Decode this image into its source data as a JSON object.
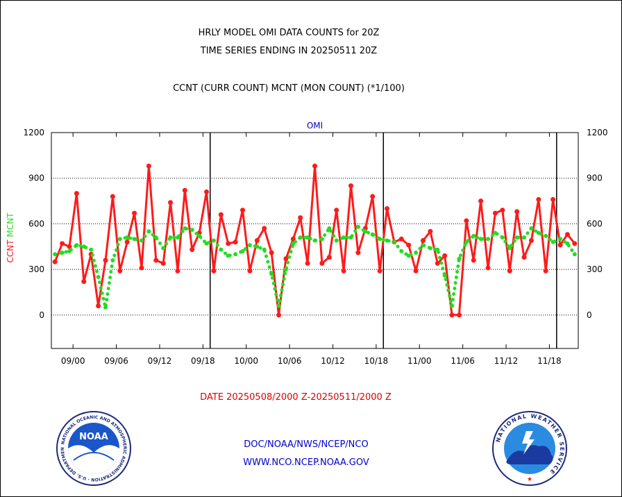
{
  "titles": {
    "line1": "HRLY MODEL OMI DATA COUNTS for 20Z",
    "line2": "TIME SERIES ENDING IN 20250511 20Z",
    "line3": "CCNT (CURR COUNT) MCNT (MON COUNT) (*1/100)"
  },
  "date_range": "DATE 20250508/2000 Z-20250511/2000 Z",
  "footer": {
    "org": "DOC/NOAA/NWS/NCEP/NCO",
    "url": "WWW.NCO.NCEP.NOAA.GOV"
  },
  "logos": {
    "left": {
      "name": "noaa-logo",
      "ring_text": "NATIONAL OCEANIC AND ATMOSPHERIC ADMINISTRATION · U.S. DEPARTMENT OF COMMERCE",
      "center_text": "NOAA"
    },
    "right": {
      "name": "nws-logo",
      "ring_text": "NATIONAL WEATHER SERVICE"
    }
  },
  "colors": {
    "ccnt": "#ff1a1a",
    "mcnt": "#22dd22",
    "axis": "#000000",
    "header": "#0000cc",
    "date": "#dd0000"
  },
  "chart_data": {
    "type": "line",
    "title": "OMI",
    "ylabel_left": [
      {
        "text": "CCNT",
        "color": "#ff1a1a"
      },
      {
        "text": "MCNT",
        "color": "#22dd22"
      }
    ],
    "ylim": [
      -220,
      1200
    ],
    "yticks": [
      0,
      300,
      600,
      900,
      1200
    ],
    "ytick_labels": [
      "0",
      "300",
      "600",
      "900",
      "1200"
    ],
    "xlim": [
      0,
      73
    ],
    "xticks": [
      {
        "x": 3,
        "label": "09/00"
      },
      {
        "x": 9,
        "label": "09/06"
      },
      {
        "x": 15,
        "label": "09/12"
      },
      {
        "x": 21,
        "label": "09/18"
      },
      {
        "x": 27,
        "label": "10/00"
      },
      {
        "x": 33,
        "label": "10/06"
      },
      {
        "x": 39,
        "label": "10/12"
      },
      {
        "x": 45,
        "label": "10/18"
      },
      {
        "x": 51,
        "label": "11/00"
      },
      {
        "x": 57,
        "label": "11/06"
      },
      {
        "x": 63,
        "label": "11/12"
      },
      {
        "x": 69,
        "label": "11/18"
      }
    ],
    "day_separators": [
      22,
      46,
      70
    ],
    "grid": true,
    "series": [
      {
        "name": "CCNT",
        "style": "solid",
        "values": [
          350,
          470,
          450,
          800,
          220,
          400,
          60,
          360,
          780,
          290,
          480,
          670,
          310,
          980,
          360,
          340,
          740,
          290,
          820,
          430,
          540,
          810,
          290,
          660,
          470,
          480,
          690,
          290,
          490,
          570,
          410,
          0,
          370,
          500,
          640,
          340,
          980,
          340,
          380,
          690,
          290,
          850,
          410,
          570,
          780,
          290,
          700,
          480,
          500,
          460,
          290,
          490,
          550,
          340,
          390,
          0,
          0,
          620,
          360,
          750,
          310,
          670,
          690,
          290,
          680,
          380,
          490,
          760,
          290,
          760,
          460,
          530,
          470
        ],
        "color": "#ff1a1a"
      },
      {
        "name": "MCNT",
        "style": "dotted",
        "values": [
          400,
          410,
          420,
          460,
          450,
          430,
          250,
          50,
          360,
          500,
          510,
          500,
          490,
          550,
          510,
          440,
          510,
          510,
          570,
          560,
          520,
          470,
          490,
          430,
          390,
          400,
          420,
          460,
          450,
          430,
          270,
          60,
          300,
          470,
          510,
          510,
          490,
          500,
          570,
          490,
          510,
          510,
          580,
          550,
          530,
          500,
          490,
          480,
          420,
          390,
          410,
          460,
          440,
          430,
          260,
          60,
          370,
          480,
          520,
          500,
          500,
          540,
          510,
          440,
          510,
          510,
          570,
          540,
          520,
          480,
          500,
          470,
          400
        ],
        "color": "#22dd22"
      }
    ]
  }
}
